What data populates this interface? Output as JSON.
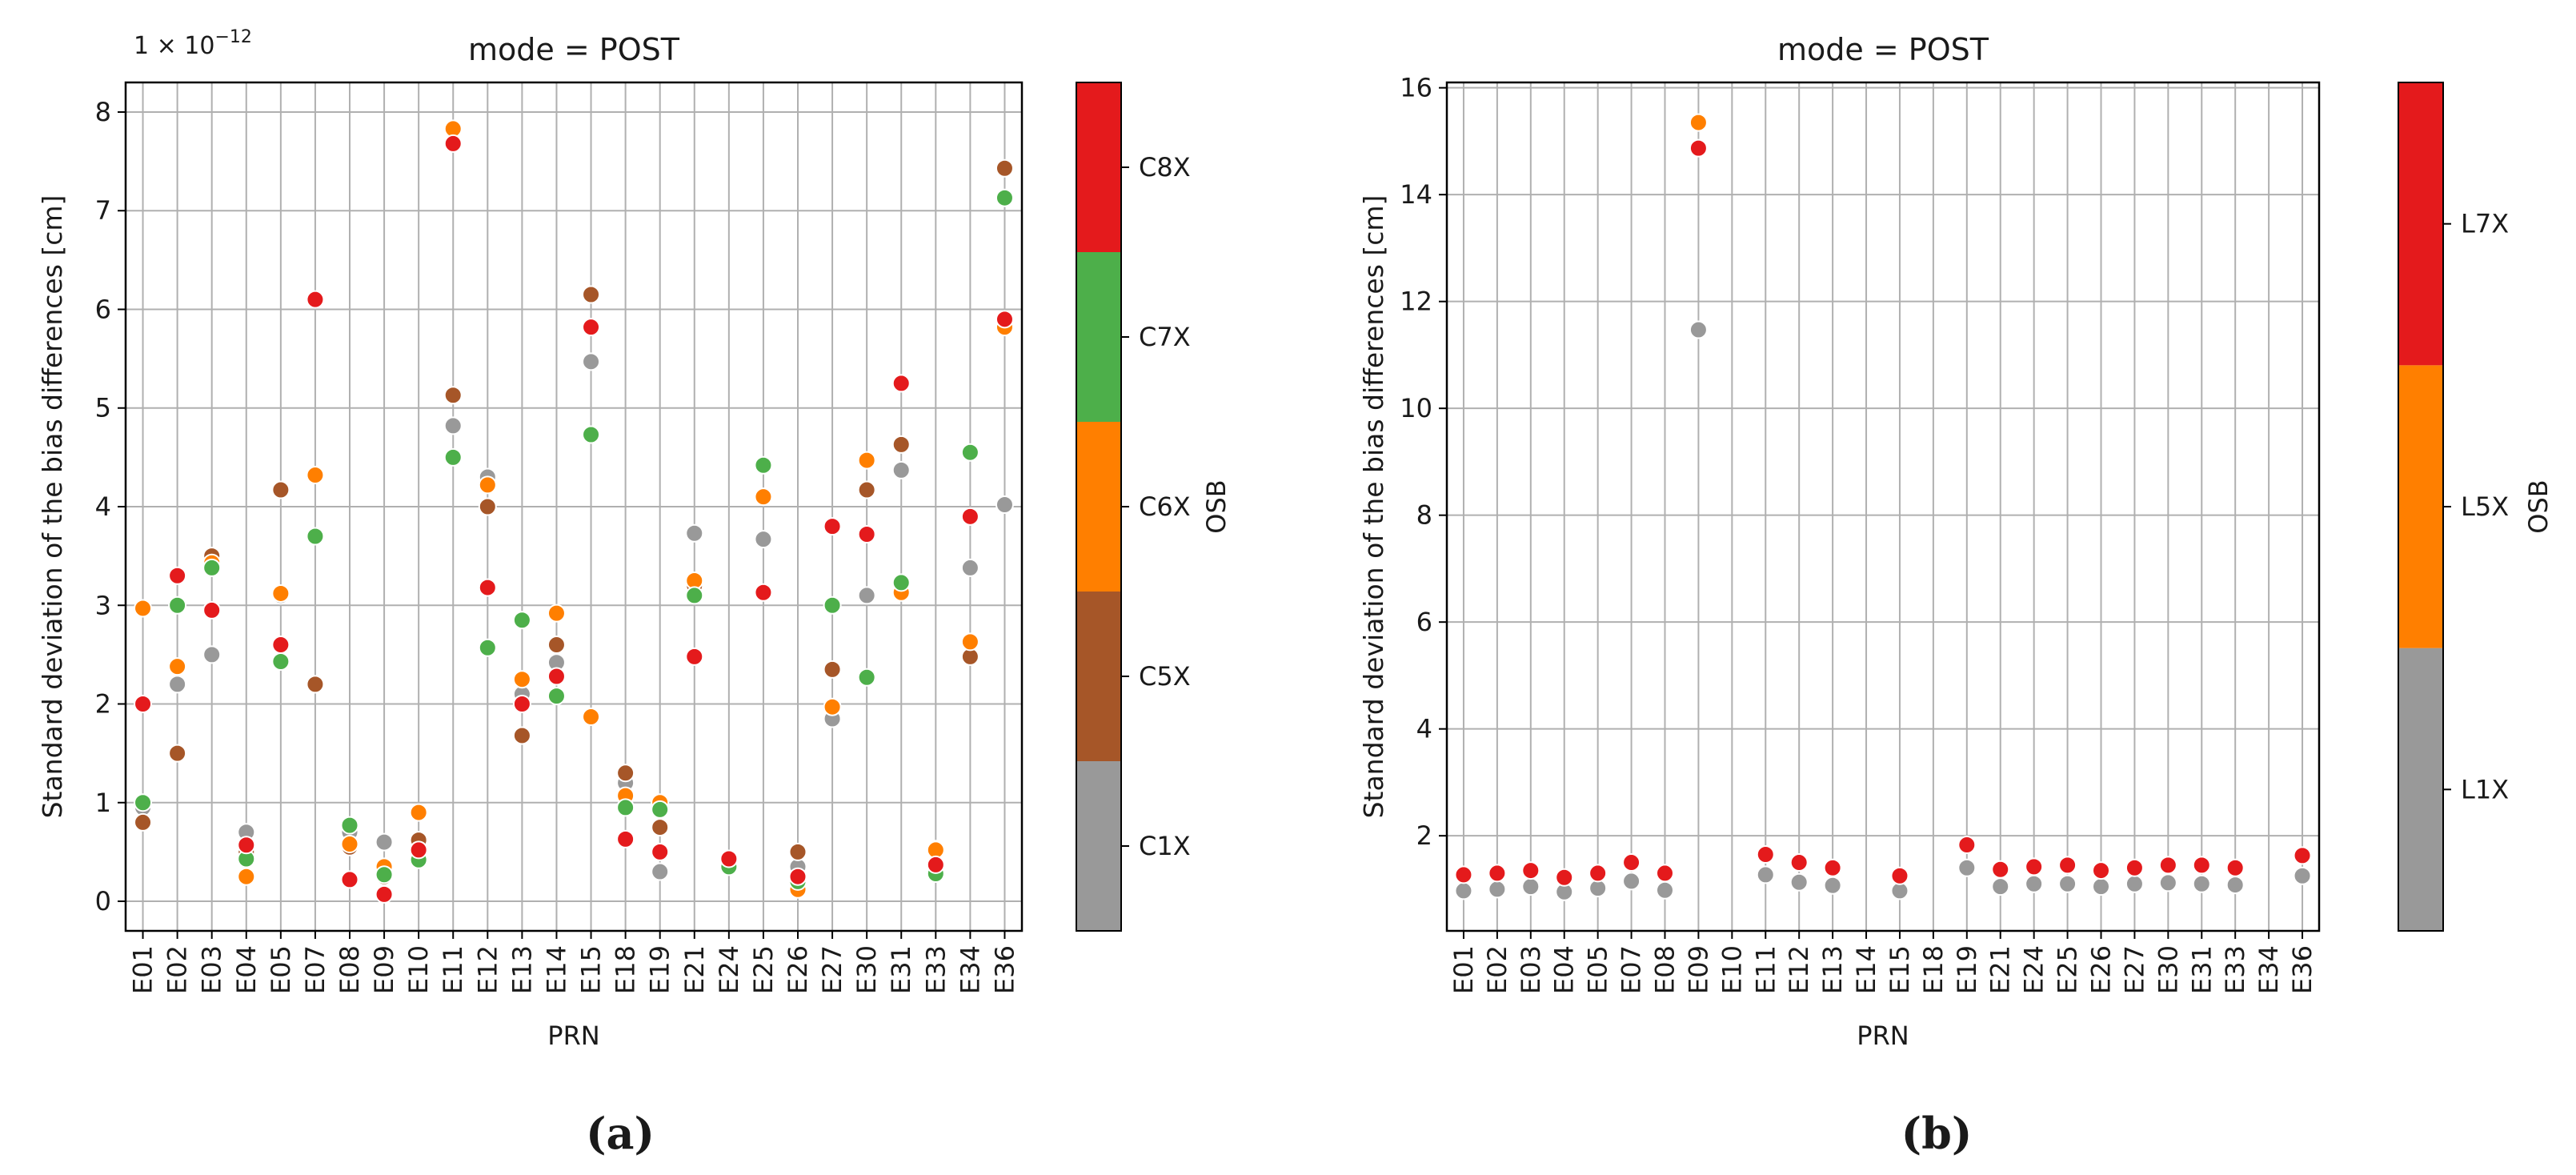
{
  "chart_data": [
    {
      "panel_label": "(a)",
      "type": "scatter",
      "title": "mode = POST",
      "xlabel": "PRN",
      "ylabel": "Standard deviation of the bias differences [cm]",
      "offset_text": "1 × 10",
      "offset_exponent": "−12",
      "ylim": [
        -0.3,
        8.3
      ],
      "yticks": [
        0,
        1,
        2,
        3,
        4,
        5,
        6,
        7,
        8
      ],
      "grid": true,
      "categories": [
        "E01",
        "E02",
        "E03",
        "E04",
        "E05",
        "E07",
        "E08",
        "E09",
        "E10",
        "E11",
        "E12",
        "E13",
        "E14",
        "E15",
        "E18",
        "E19",
        "E21",
        "E24",
        "E25",
        "E26",
        "E27",
        "E30",
        "E31",
        "E33",
        "E34",
        "E36"
      ],
      "colorbar": {
        "label": "OSB",
        "entries": [
          {
            "name": "C1X",
            "color": "#999999"
          },
          {
            "name": "C5X",
            "color": "#a65628"
          },
          {
            "name": "C6X",
            "color": "#ff7f00"
          },
          {
            "name": "C7X",
            "color": "#4daf4a"
          },
          {
            "name": "C8X",
            "color": "#e41a1c"
          }
        ]
      },
      "series": [
        {
          "name": "C1X",
          "color": "#999999",
          "values": [
            0.95,
            2.2,
            2.5,
            0.7,
            3.1,
            2.2,
            0.7,
            0.6,
            0.6,
            4.82,
            4.3,
            2.1,
            2.42,
            5.47,
            1.2,
            0.3,
            3.73,
            0.4,
            3.67,
            0.35,
            1.85,
            3.1,
            4.37,
            0.35,
            3.38,
            4.02
          ]
        },
        {
          "name": "C5X",
          "color": "#a65628",
          "values": [
            0.8,
            1.5,
            3.5,
            0.5,
            4.17,
            2.2,
            0.55,
            0.25,
            0.62,
            5.13,
            4.0,
            1.68,
            2.6,
            6.15,
            1.3,
            0.75,
            3.2,
            0.42,
            4.1,
            0.5,
            2.35,
            4.17,
            4.63,
            0.53,
            2.48,
            7.43
          ]
        },
        {
          "name": "C6X",
          "color": "#ff7f00",
          "values": [
            2.97,
            2.38,
            3.43,
            0.25,
            3.12,
            4.32,
            0.58,
            0.35,
            0.9,
            7.83,
            4.22,
            2.25,
            2.92,
            1.87,
            1.07,
            1.0,
            3.25,
            0.38,
            4.1,
            0.12,
            1.97,
            4.47,
            3.13,
            0.52,
            2.63,
            5.82
          ]
        },
        {
          "name": "C7X",
          "color": "#4daf4a",
          "values": [
            1.0,
            3.0,
            3.38,
            0.43,
            2.43,
            3.7,
            0.77,
            0.27,
            0.42,
            4.5,
            2.57,
            2.85,
            2.08,
            4.73,
            0.95,
            0.93,
            3.1,
            0.35,
            4.42,
            0.2,
            3.0,
            2.27,
            3.23,
            0.28,
            4.55,
            7.13
          ]
        },
        {
          "name": "C8X",
          "color": "#e41a1c",
          "values": [
            2.0,
            3.3,
            2.95,
            0.57,
            2.6,
            6.1,
            0.22,
            0.07,
            0.52,
            7.68,
            3.18,
            2.0,
            2.28,
            5.82,
            0.63,
            0.5,
            2.48,
            0.43,
            3.13,
            0.25,
            3.8,
            3.72,
            5.25,
            0.37,
            3.9,
            5.9
          ]
        }
      ]
    },
    {
      "panel_label": "(b)",
      "type": "scatter",
      "title": "mode = POST",
      "xlabel": "PRN",
      "ylabel": "Standard deviation of the bias differences [cm]",
      "ylim": [
        0.22,
        16.1
      ],
      "yticks": [
        2,
        4,
        6,
        8,
        10,
        12,
        14,
        16
      ],
      "grid": true,
      "categories": [
        "E01",
        "E02",
        "E03",
        "E04",
        "E05",
        "E07",
        "E08",
        "E09",
        "E10",
        "E11",
        "E12",
        "E13",
        "E14",
        "E15",
        "E18",
        "E19",
        "E21",
        "E24",
        "E25",
        "E26",
        "E27",
        "E30",
        "E31",
        "E33",
        "E34",
        "E36"
      ],
      "colorbar": {
        "label": "OSB",
        "entries": [
          {
            "name": "L1X",
            "color": "#999999"
          },
          {
            "name": "L5X",
            "color": "#ff7f00"
          },
          {
            "name": "L7X",
            "color": "#e41a1c"
          }
        ]
      },
      "series": [
        {
          "name": "L1X",
          "color": "#999999",
          "values": [
            0.97,
            1.0,
            1.05,
            0.95,
            1.02,
            1.15,
            0.98,
            11.47,
            null,
            1.27,
            1.13,
            1.07,
            null,
            0.97,
            null,
            1.4,
            1.05,
            1.1,
            1.1,
            1.05,
            1.1,
            1.12,
            1.1,
            1.08,
            null,
            1.25
          ]
        },
        {
          "name": "L5X",
          "color": "#ff7f00",
          "values": [
            null,
            null,
            null,
            null,
            null,
            null,
            null,
            15.35,
            null,
            null,
            null,
            null,
            null,
            null,
            null,
            null,
            null,
            null,
            null,
            null,
            null,
            null,
            null,
            null,
            null,
            null
          ]
        },
        {
          "name": "L7X",
          "color": "#e41a1c",
          "values": [
            1.27,
            1.3,
            1.35,
            1.22,
            1.3,
            1.5,
            1.3,
            14.87,
            null,
            1.65,
            1.5,
            1.4,
            null,
            1.25,
            null,
            1.83,
            1.37,
            1.42,
            1.45,
            1.35,
            1.4,
            1.45,
            1.45,
            1.4,
            null,
            1.63
          ]
        }
      ]
    }
  ]
}
